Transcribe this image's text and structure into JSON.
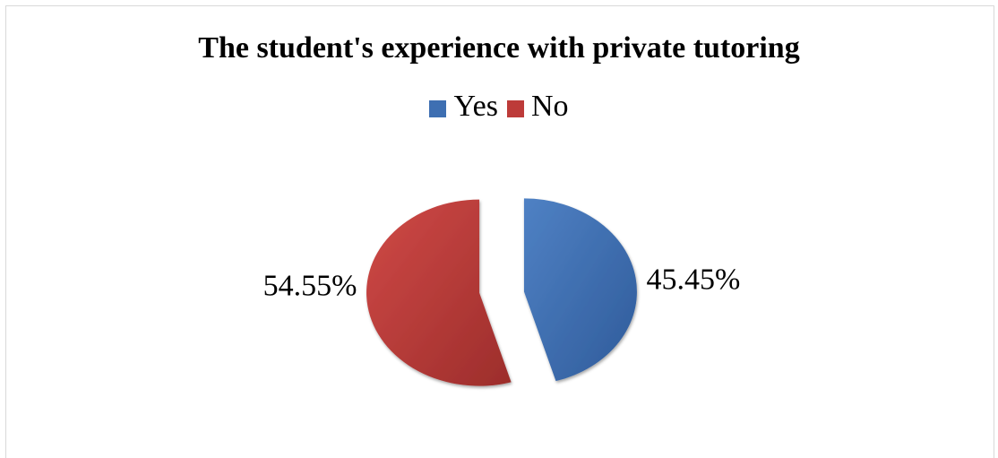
{
  "chart_data": {
    "type": "pie",
    "title": "The student's experience with private tutoring",
    "categories": [
      "Yes",
      "No"
    ],
    "values": [
      45.45,
      54.55
    ],
    "labels": [
      "45.45%",
      "54.55%"
    ],
    "colors": [
      "#3e6fb2",
      "#bd3b39"
    ],
    "legend_position": "top"
  }
}
